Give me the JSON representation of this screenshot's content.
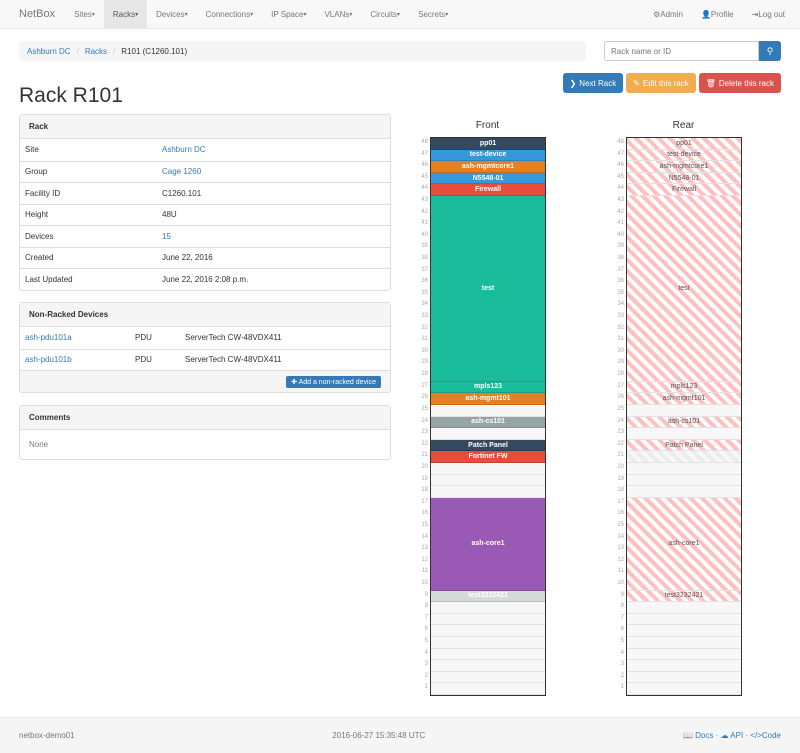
{
  "navbar": {
    "brand": "NetBox",
    "items": [
      "Sites",
      "Racks",
      "Devices",
      "Connections",
      "IP Space",
      "VLANs",
      "Circuits",
      "Secrets"
    ],
    "active": "Racks",
    "right": [
      {
        "icon": "gear-icon",
        "label": "Admin"
      },
      {
        "icon": "user-icon",
        "label": "Profile"
      },
      {
        "icon": "logout-icon",
        "label": "Log out"
      }
    ]
  },
  "breadcrumb": [
    "Ashburn DC",
    "Racks",
    "R101 (C1260.101)"
  ],
  "search": {
    "placeholder": "Rack name or ID",
    "icon": "search-icon"
  },
  "actions": {
    "next": "Next Rack",
    "edit": "Edit this rack",
    "delete": "Delete this rack"
  },
  "title": "Rack R101",
  "rack_panel": {
    "heading": "Rack",
    "rows": [
      {
        "k": "Site",
        "v": "Ashburn DC",
        "link": true
      },
      {
        "k": "Group",
        "v": "Cage 1260",
        "link": true
      },
      {
        "k": "Facility ID",
        "v": "C1260.101"
      },
      {
        "k": "Height",
        "v": "48U"
      },
      {
        "k": "Devices",
        "v": "15",
        "link": true
      },
      {
        "k": "Created",
        "v": "June 22, 2016"
      },
      {
        "k": "Last Updated",
        "v": "June 22, 2016 2:08 p.m."
      }
    ]
  },
  "nonracked": {
    "heading": "Non-Racked Devices",
    "rows": [
      {
        "name": "ash-pdu101a",
        "role": "PDU",
        "type": "ServerTech CW-48VDX411"
      },
      {
        "name": "ash-pdu101b",
        "role": "PDU",
        "type": "ServerTech CW-48VDX411"
      }
    ],
    "add_label": "Add a non-racked device"
  },
  "comments": {
    "heading": "Comments",
    "text": "None"
  },
  "rack": {
    "height": 48,
    "front_label": "Front",
    "rear_label": "Rear",
    "devices": [
      {
        "name": "pp01",
        "top": 48,
        "u": 1,
        "color": "#34495e"
      },
      {
        "name": "test-device",
        "top": 47,
        "u": 1,
        "color": "#3498db"
      },
      {
        "name": "ash-mgmtcore1",
        "top": 46,
        "u": 1,
        "color": "#e67e22"
      },
      {
        "name": "N5548-01",
        "top": 45,
        "u": 1,
        "color": "#3498db"
      },
      {
        "name": "Firewall",
        "top": 44,
        "u": 1,
        "color": "#e74c3c"
      },
      {
        "name": "test",
        "top": 43,
        "u": 16,
        "color": "#1abc9c"
      },
      {
        "name": "mpls123",
        "top": 27,
        "u": 1,
        "color": "#1abc9c"
      },
      {
        "name": "ash-mgmt101",
        "top": 26,
        "u": 1,
        "color": "#e67e22"
      },
      {
        "name": "ash-cs101",
        "top": 24,
        "u": 1,
        "color": "#95a5a6"
      },
      {
        "name": "Patch Panel",
        "top": 22,
        "u": 1,
        "color": "#34495e"
      },
      {
        "name": "Fortinet FW",
        "top": 21,
        "u": 1,
        "color": "#e74c3c",
        "rear": "faint"
      },
      {
        "name": "ash-core1",
        "top": 17,
        "u": 8,
        "color": "#9b59b6"
      },
      {
        "name": "test3232421",
        "top": 9,
        "u": 1,
        "color": "#d5dbdb"
      }
    ]
  },
  "footer": {
    "host": "netbox-demo01",
    "time": "2016-06-27 15:35:48 UTC",
    "links": [
      "Docs",
      "API",
      "Code"
    ]
  }
}
